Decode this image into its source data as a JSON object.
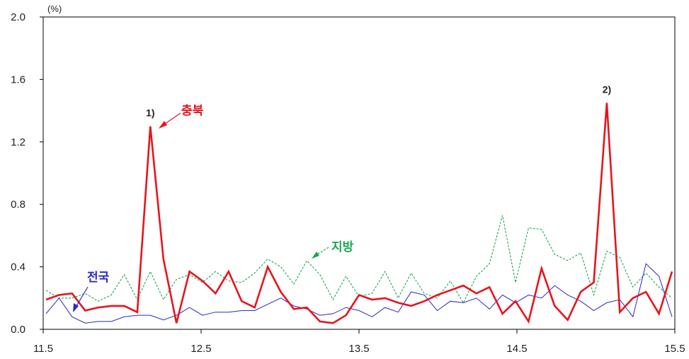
{
  "chart_data": {
    "type": "line",
    "unit_label": "(%)",
    "ylim": [
      0.0,
      2.0
    ],
    "yticks": [
      "0.0",
      "0.4",
      "0.8",
      "1.2",
      "1.6",
      "2.0"
    ],
    "xlim": [
      11.5,
      15.5
    ],
    "xticks": [
      "11.5",
      "12.5",
      "13.5",
      "14.5",
      "15.5"
    ],
    "legend": "annotations",
    "grid": false,
    "series": [
      {
        "name": "충북",
        "color": "#e8141c",
        "style": "solid",
        "values": [
          0.19,
          0.22,
          0.23,
          0.12,
          0.14,
          0.15,
          0.15,
          0.11,
          1.3,
          0.45,
          0.04,
          0.37,
          0.31,
          0.23,
          0.37,
          0.18,
          0.14,
          0.4,
          0.24,
          0.13,
          0.14,
          0.05,
          0.04,
          0.09,
          0.22,
          0.19,
          0.2,
          0.17,
          0.15,
          0.18,
          0.22,
          0.25,
          0.28,
          0.23,
          0.27,
          0.1,
          0.18,
          0.05,
          0.39,
          0.15,
          0.06,
          0.24,
          0.3,
          1.45,
          0.11,
          0.2,
          0.24,
          0.1,
          0.37
        ]
      },
      {
        "name": "지방",
        "color": "#18a850",
        "style": "dashed",
        "values": [
          0.25,
          0.2,
          0.2,
          0.23,
          0.18,
          0.22,
          0.35,
          0.19,
          0.37,
          0.19,
          0.32,
          0.35,
          0.3,
          0.37,
          0.31,
          0.3,
          0.36,
          0.45,
          0.4,
          0.29,
          0.44,
          0.35,
          0.19,
          0.34,
          0.21,
          0.23,
          0.37,
          0.2,
          0.36,
          0.23,
          0.2,
          0.31,
          0.17,
          0.34,
          0.42,
          0.73,
          0.3,
          0.65,
          0.64,
          0.48,
          0.44,
          0.49,
          0.22,
          0.5,
          0.46,
          0.27,
          0.36,
          0.27,
          0.2
        ]
      },
      {
        "name": "전국",
        "color": "#2828c8",
        "style": "solid",
        "values": [
          0.1,
          0.2,
          0.08,
          0.04,
          0.05,
          0.05,
          0.08,
          0.09,
          0.09,
          0.06,
          0.09,
          0.14,
          0.09,
          0.11,
          0.11,
          0.12,
          0.12,
          0.16,
          0.2,
          0.15,
          0.13,
          0.09,
          0.1,
          0.14,
          0.12,
          0.08,
          0.14,
          0.11,
          0.24,
          0.22,
          0.12,
          0.18,
          0.17,
          0.2,
          0.13,
          0.22,
          0.17,
          0.22,
          0.2,
          0.28,
          0.22,
          0.18,
          0.12,
          0.17,
          0.19,
          0.08,
          0.42,
          0.34,
          0.08
        ]
      }
    ],
    "annotations": [
      {
        "text": "1)",
        "series": 0,
        "index": 8
      },
      {
        "text": "2)",
        "series": 0,
        "index": 43
      }
    ]
  }
}
